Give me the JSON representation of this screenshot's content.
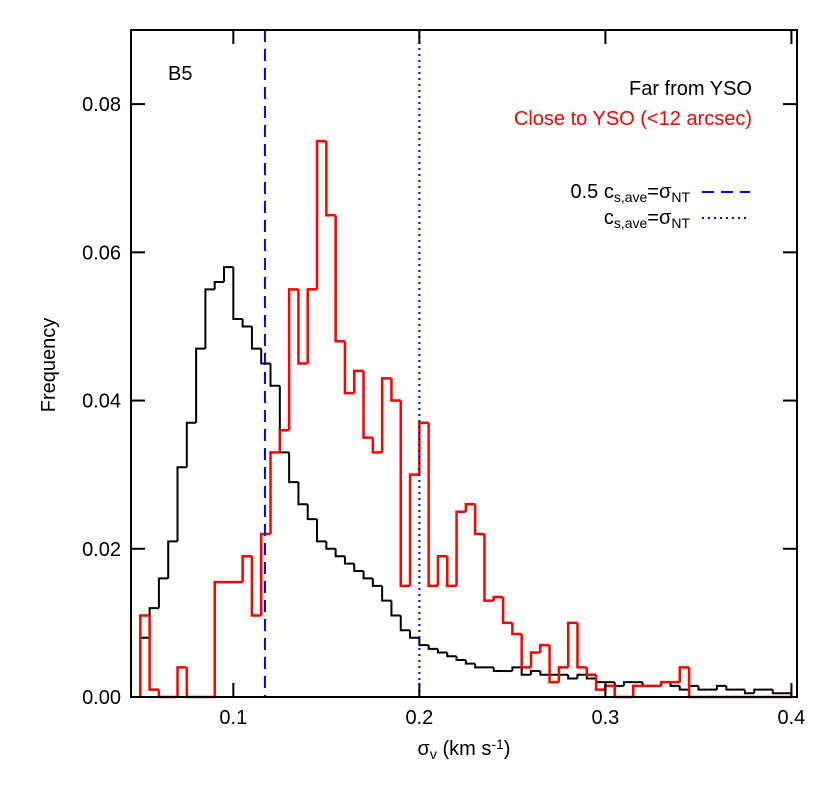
{
  "chart_data": {
    "type": "histogram",
    "annotation": "B5",
    "xlabel": [
      {
        "text": "σ"
      },
      {
        "text": "v",
        "sub": true
      },
      {
        "text": " (km s"
      },
      {
        "text": "-1",
        "sup": true
      },
      {
        "text": ")"
      }
    ],
    "ylabel": "Frequency",
    "xlim": [
      0.045,
      0.403
    ],
    "ylim": [
      0,
      0.09
    ],
    "xticks": [
      0.1,
      0.2,
      0.3,
      0.4
    ],
    "yticks": [
      {
        "value": 0,
        "label": "0.00"
      },
      {
        "value": 0.02,
        "label": "0.02"
      },
      {
        "value": 0.04,
        "label": "0.04"
      },
      {
        "value": 0.06,
        "label": "0.06"
      },
      {
        "value": 0.08,
        "label": "0.08"
      }
    ],
    "bins": [
      0.05,
      0.055,
      0.06,
      0.065,
      0.07,
      0.075,
      0.08,
      0.085,
      0.09,
      0.095,
      0.1,
      0.105,
      0.11,
      0.115,
      0.12,
      0.125,
      0.13,
      0.135,
      0.14,
      0.145,
      0.15,
      0.155,
      0.16,
      0.165,
      0.17,
      0.175,
      0.18,
      0.185,
      0.19,
      0.195,
      0.2,
      0.205,
      0.21,
      0.215,
      0.22,
      0.225,
      0.23,
      0.235,
      0.24,
      0.245,
      0.25,
      0.255,
      0.26,
      0.265,
      0.27,
      0.275,
      0.28,
      0.285,
      0.29,
      0.295,
      0.3,
      0.305,
      0.31,
      0.315,
      0.32,
      0.325,
      0.33,
      0.335,
      0.34,
      0.345,
      0.35,
      0.355,
      0.36,
      0.365,
      0.37,
      0.375,
      0.38,
      0.385,
      0.39,
      0.395,
      0.4
    ],
    "series": [
      {
        "name": "Far from YSO",
        "color": "#000000",
        "values": [
          0.008,
          0.012,
          0.016,
          0.021,
          0.031,
          0.037,
          0.047,
          0.055,
          0.056,
          0.058,
          0.051,
          0.05,
          0.047,
          0.045,
          0.042,
          0.033,
          0.029,
          0.026,
          0.024,
          0.021,
          0.02,
          0.019,
          0.018,
          0.017,
          0.016,
          0.015,
          0.013,
          0.011,
          0.009,
          0.008,
          0.007,
          0.0065,
          0.006,
          0.0055,
          0.005,
          0.0045,
          0.004,
          0.004,
          0.0035,
          0.0035,
          0.004,
          0.003,
          0.0035,
          0.003,
          0.003,
          0.003,
          0.0025,
          0.003,
          0.0025,
          0.002,
          0.002,
          0.0015,
          0.002,
          0.002,
          0.0015,
          0.0015,
          0.002,
          0.0015,
          0.001,
          0.0015,
          0.001,
          0.001,
          0.0015,
          0.001,
          0.001,
          0.0005,
          0.001,
          0.001,
          0.0005,
          0.0005
        ]
      },
      {
        "name": "Close to YSO (<12 arcsec)",
        "color": "#ff0000",
        "values": [
          0.011,
          0.001,
          0,
          0,
          0.004,
          0,
          0,
          0,
          0.0155,
          0.0155,
          0.0155,
          0.019,
          0.011,
          0.022,
          0.033,
          0.036,
          0.055,
          0.045,
          0.055,
          0.075,
          0.065,
          0.048,
          0.041,
          0.044,
          0.035,
          0.033,
          0.043,
          0.04,
          0.015,
          0.03,
          0.037,
          0.015,
          0.019,
          0.015,
          0.025,
          0.026,
          0.022,
          0.013,
          0.0135,
          0.01,
          0.0085,
          0.004,
          0.006,
          0.007,
          0.002,
          0.004,
          0.01,
          0.004,
          0.003,
          0.001,
          0.0015,
          0,
          0,
          0.0015,
          0.0015,
          0.0015,
          0.002,
          0.002,
          0.004,
          0,
          0,
          0,
          0,
          0,
          0,
          0,
          0,
          0,
          0,
          0
        ]
      }
    ],
    "vlines": [
      {
        "x": 0.117,
        "style": "dashed",
        "color": "#0000ff",
        "label": [
          {
            "text": "0.5 c"
          },
          {
            "text": "s,ave",
            "sub": true
          },
          {
            "text": "=σ"
          },
          {
            "text": "NT",
            "sub": true
          }
        ]
      },
      {
        "x": 0.2,
        "style": "dotted",
        "color": "#0000ff",
        "label": [
          {
            "text": "c"
          },
          {
            "text": "s,ave",
            "sub": true
          },
          {
            "text": "=σ"
          },
          {
            "text": "NT",
            "sub": true
          }
        ]
      }
    ]
  }
}
